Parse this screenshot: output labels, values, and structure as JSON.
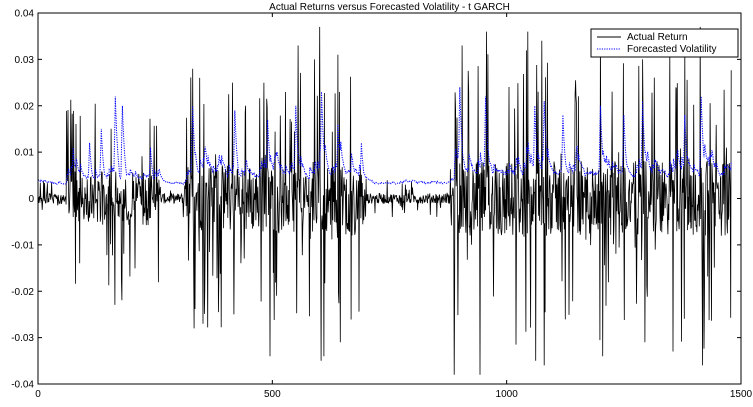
{
  "chart_data": {
    "type": "line",
    "title": "Actual Returns versus Forecasted Volatility - t GARCH",
    "xlabel": "",
    "ylabel": "",
    "xlim": [
      0,
      1500
    ],
    "ylim": [
      -0.04,
      0.04
    ],
    "xticks": [
      0,
      500,
      1000,
      1500
    ],
    "xtick_labels": [
      "0",
      "500",
      "1000",
      "1500"
    ],
    "yticks": [
      -0.04,
      -0.03,
      -0.02,
      -0.01,
      0,
      0.01,
      0.02,
      0.03,
      0.04
    ],
    "ytick_labels": [
      "-0.04",
      "-0.03",
      "-0.02",
      "-0.01",
      "0",
      "0.01",
      "0.02",
      "0.03",
      "0.04"
    ],
    "grid": false,
    "legend_position": "top-right",
    "n_points": 1480,
    "series": [
      {
        "name": "Actual Return",
        "color": "#000000",
        "style": "solid",
        "summary": "daily returns oscillating around 0, mostly within ±0.005 in calm periods and spiking to about ±0.03 (extremes near 0.037 / -0.038) in volatile clusters",
        "spikes": [
          {
            "x": 330,
            "y": 0.028
          },
          {
            "x": 333,
            "y": -0.028
          },
          {
            "x": 345,
            "y": 0.026
          },
          {
            "x": 352,
            "y": -0.027
          },
          {
            "x": 415,
            "y": 0.025
          },
          {
            "x": 418,
            "y": -0.025
          },
          {
            "x": 495,
            "y": -0.034
          },
          {
            "x": 555,
            "y": 0.033
          },
          {
            "x": 590,
            "y": 0.03
          },
          {
            "x": 601,
            "y": 0.037
          },
          {
            "x": 604,
            "y": -0.035
          },
          {
            "x": 610,
            "y": -0.034
          },
          {
            "x": 640,
            "y": 0.031
          },
          {
            "x": 645,
            "y": -0.031
          },
          {
            "x": 888,
            "y": -0.038
          },
          {
            "x": 905,
            "y": 0.033
          },
          {
            "x": 943,
            "y": -0.038
          },
          {
            "x": 957,
            "y": 0.036
          },
          {
            "x": 1045,
            "y": 0.036
          },
          {
            "x": 1062,
            "y": -0.035
          },
          {
            "x": 1075,
            "y": 0.034
          },
          {
            "x": 1080,
            "y": -0.036
          },
          {
            "x": 1200,
            "y": 0.036
          },
          {
            "x": 1205,
            "y": -0.034
          },
          {
            "x": 1290,
            "y": 0.03
          },
          {
            "x": 1295,
            "y": -0.031
          },
          {
            "x": 1355,
            "y": -0.033
          },
          {
            "x": 1380,
            "y": 0.033
          },
          {
            "x": 1413,
            "y": 0.037
          },
          {
            "x": 1418,
            "y": -0.036
          }
        ]
      },
      {
        "name": "Forecasted Volatility",
        "color": "#0000ff",
        "style": "dotted",
        "summary": "conditional volatility forecast, baseline about 0.003-0.005, rising to about 0.01-0.024 after return spikes",
        "peaks": [
          {
            "x": 75,
            "y": 0.011
          },
          {
            "x": 110,
            "y": 0.012
          },
          {
            "x": 135,
            "y": 0.015
          },
          {
            "x": 165,
            "y": 0.022
          },
          {
            "x": 180,
            "y": 0.02
          },
          {
            "x": 240,
            "y": 0.011
          },
          {
            "x": 330,
            "y": 0.02
          },
          {
            "x": 420,
            "y": 0.019
          },
          {
            "x": 490,
            "y": 0.017
          },
          {
            "x": 550,
            "y": 0.02
          },
          {
            "x": 605,
            "y": 0.023
          },
          {
            "x": 640,
            "y": 0.016
          },
          {
            "x": 690,
            "y": 0.012
          },
          {
            "x": 900,
            "y": 0.024
          },
          {
            "x": 955,
            "y": 0.022
          },
          {
            "x": 1060,
            "y": 0.02
          },
          {
            "x": 1080,
            "y": 0.021
          },
          {
            "x": 1120,
            "y": 0.018
          },
          {
            "x": 1200,
            "y": 0.02
          },
          {
            "x": 1250,
            "y": 0.018
          },
          {
            "x": 1290,
            "y": 0.021
          },
          {
            "x": 1380,
            "y": 0.018
          },
          {
            "x": 1415,
            "y": 0.022
          }
        ]
      }
    ],
    "volatile_regions": [
      {
        "start": 60,
        "end": 260,
        "amp": 0.013
      },
      {
        "start": 310,
        "end": 700,
        "amp": 0.016
      },
      {
        "start": 880,
        "end": 1480,
        "amp": 0.018
      }
    ]
  }
}
